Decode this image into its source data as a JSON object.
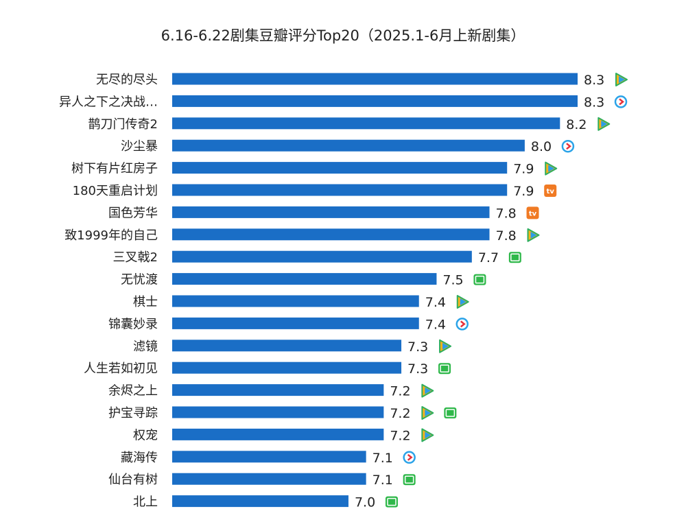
{
  "chart_data": {
    "type": "bar",
    "orientation": "horizontal",
    "title": "6.16-6.22剧集豆瓣评分Top20（2025.1-6月上新剧集）",
    "xlim": [
      6.0,
      8.3
    ],
    "grid": false,
    "bar_color": "#1a6ec6",
    "categories": [
      "无尽的尽头",
      "异人之下之决战…",
      "鹊刀门传奇2",
      "沙尘暴",
      "树下有片红房子",
      "180天重启计划",
      "国色芳华",
      "致1999年的自己",
      "三叉戟2",
      "无忧渡",
      "棋士",
      "锦囊妙录",
      "滤镜",
      "人生若如初见",
      "余烬之上",
      "护宝寻踪",
      "权宠",
      "藏海传",
      "仙台有树",
      "北上"
    ],
    "values": [
      8.3,
      8.3,
      8.2,
      8.0,
      7.9,
      7.9,
      7.8,
      7.8,
      7.7,
      7.5,
      7.4,
      7.4,
      7.3,
      7.3,
      7.2,
      7.2,
      7.2,
      7.1,
      7.1,
      7.0
    ],
    "data_labels": [
      "8.3",
      "8.3",
      "8.2",
      "8.0",
      "7.9",
      "7.9",
      "7.8",
      "7.8",
      "7.7",
      "7.5",
      "7.4",
      "7.4",
      "7.3",
      "7.3",
      "7.2",
      "7.2",
      "7.2",
      "7.1",
      "7.1",
      "7.0"
    ],
    "platform_icons": [
      [
        "tencent-video"
      ],
      [
        "youku"
      ],
      [
        "tencent-video"
      ],
      [
        "youku"
      ],
      [
        "tencent-video"
      ],
      [
        "mango-tv"
      ],
      [
        "mango-tv"
      ],
      [
        "tencent-video"
      ],
      [
        "iqiyi"
      ],
      [
        "iqiyi"
      ],
      [
        "tencent-video"
      ],
      [
        "youku"
      ],
      [
        "tencent-video"
      ],
      [
        "iqiyi"
      ],
      [
        "tencent-video"
      ],
      [
        "tencent-video",
        "iqiyi"
      ],
      [
        "tencent-video"
      ],
      [
        "youku"
      ],
      [
        "iqiyi"
      ],
      [
        "iqiyi"
      ]
    ]
  }
}
